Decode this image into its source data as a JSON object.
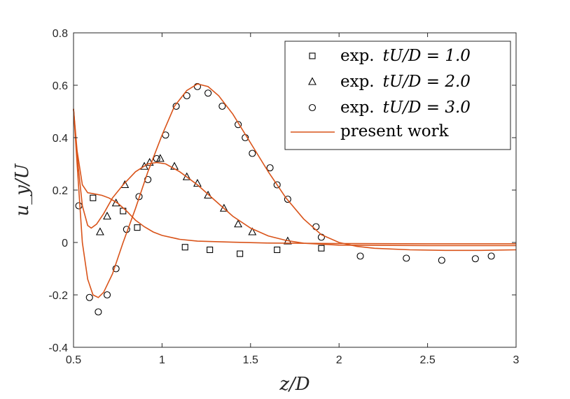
{
  "chart_data": {
    "type": "scatter",
    "xlabel": "z/D",
    "ylabel": "u_y/U",
    "xlim": [
      0.5,
      3
    ],
    "ylim": [
      -0.4,
      0.8
    ],
    "xticks": [
      "0.5",
      "1",
      "1.5",
      "2",
      "2.5",
      "3"
    ],
    "yticks": [
      "-0.4",
      "-0.2",
      "0",
      "0.2",
      "0.4",
      "0.6",
      "0.8"
    ],
    "grid": false,
    "legend_position": "top-right",
    "series": [
      {
        "name": "exp. tU/D = 1.0",
        "legend_prefix": "exp.",
        "legend_math": "tU/D = 1.0",
        "marker": "square",
        "points": [
          [
            0.61,
            0.17
          ],
          [
            0.78,
            0.12
          ],
          [
            0.86,
            0.057
          ],
          [
            1.13,
            -0.018
          ],
          [
            1.27,
            -0.028
          ],
          [
            1.44,
            -0.043
          ],
          [
            1.65,
            -0.028
          ],
          [
            1.9,
            -0.022
          ]
        ]
      },
      {
        "name": "exp. tU/D = 2.0",
        "legend_prefix": "exp.",
        "legend_math": "tU/D = 2.0",
        "marker": "triangle",
        "points": [
          [
            0.65,
            0.04
          ],
          [
            0.69,
            0.1
          ],
          [
            0.74,
            0.15
          ],
          [
            0.79,
            0.22
          ],
          [
            0.9,
            0.29
          ],
          [
            0.93,
            0.305
          ],
          [
            0.99,
            0.32
          ],
          [
            1.07,
            0.29
          ],
          [
            1.14,
            0.25
          ],
          [
            1.2,
            0.225
          ],
          [
            1.26,
            0.18
          ],
          [
            1.35,
            0.13
          ],
          [
            1.43,
            0.07
          ],
          [
            1.51,
            0.04
          ],
          [
            1.71,
            0.005
          ]
        ]
      },
      {
        "name": "exp. tU/D = 3.0",
        "legend_prefix": "exp.",
        "legend_math": "tU/D = 3.0",
        "marker": "circle",
        "points": [
          [
            0.53,
            0.14
          ],
          [
            0.59,
            -0.21
          ],
          [
            0.64,
            -0.265
          ],
          [
            0.69,
            -0.2
          ],
          [
            0.74,
            -0.1
          ],
          [
            0.8,
            0.05
          ],
          [
            0.87,
            0.175
          ],
          [
            0.92,
            0.24
          ],
          [
            0.97,
            0.32
          ],
          [
            1.02,
            0.41
          ],
          [
            1.08,
            0.52
          ],
          [
            1.14,
            0.56
          ],
          [
            1.2,
            0.595
          ],
          [
            1.26,
            0.57
          ],
          [
            1.34,
            0.52
          ],
          [
            1.43,
            0.45
          ],
          [
            1.47,
            0.4
          ],
          [
            1.51,
            0.34
          ],
          [
            1.61,
            0.285
          ],
          [
            1.65,
            0.22
          ],
          [
            1.71,
            0.165
          ],
          [
            1.87,
            0.06
          ],
          [
            1.9,
            0.02
          ],
          [
            2.12,
            -0.052
          ],
          [
            2.38,
            -0.06
          ],
          [
            2.58,
            -0.068
          ],
          [
            2.77,
            -0.062
          ],
          [
            2.86,
            -0.052
          ]
        ]
      },
      {
        "name": "present work",
        "legend_prefix": "present work",
        "legend_math": "",
        "marker": "line",
        "color": "#D95319",
        "curves": [
          [
            [
              0.5,
              0.51
            ],
            [
              0.52,
              0.35
            ],
            [
              0.55,
              0.22
            ],
            [
              0.58,
              0.19
            ],
            [
              0.62,
              0.185
            ],
            [
              0.66,
              0.18
            ],
            [
              0.7,
              0.17
            ],
            [
              0.75,
              0.15
            ],
            [
              0.8,
              0.12
            ],
            [
              0.85,
              0.085
            ],
            [
              0.9,
              0.06
            ],
            [
              0.95,
              0.04
            ],
            [
              1.0,
              0.027
            ],
            [
              1.1,
              0.012
            ],
            [
              1.2,
              0.005
            ],
            [
              1.4,
              0.001
            ],
            [
              1.6,
              -0.002
            ],
            [
              2.0,
              -0.004
            ],
            [
              2.5,
              -0.005
            ],
            [
              3.0,
              -0.005
            ]
          ],
          [
            [
              0.5,
              0.51
            ],
            [
              0.52,
              0.33
            ],
            [
              0.55,
              0.14
            ],
            [
              0.58,
              0.065
            ],
            [
              0.6,
              0.055
            ],
            [
              0.63,
              0.07
            ],
            [
              0.67,
              0.11
            ],
            [
              0.72,
              0.17
            ],
            [
              0.78,
              0.22
            ],
            [
              0.85,
              0.27
            ],
            [
              0.92,
              0.3
            ],
            [
              0.97,
              0.305
            ],
            [
              1.02,
              0.3
            ],
            [
              1.1,
              0.27
            ],
            [
              1.2,
              0.22
            ],
            [
              1.3,
              0.16
            ],
            [
              1.4,
              0.1
            ],
            [
              1.5,
              0.055
            ],
            [
              1.6,
              0.025
            ],
            [
              1.7,
              0.008
            ],
            [
              1.8,
              -0.003
            ],
            [
              2.0,
              -0.01
            ],
            [
              2.5,
              -0.012
            ],
            [
              3.0,
              -0.012
            ]
          ],
          [
            [
              0.5,
              0.51
            ],
            [
              0.52,
              0.3
            ],
            [
              0.55,
              0.0
            ],
            [
              0.58,
              -0.14
            ],
            [
              0.61,
              -0.2
            ],
            [
              0.64,
              -0.21
            ],
            [
              0.67,
              -0.19
            ],
            [
              0.72,
              -0.12
            ],
            [
              0.78,
              0.0
            ],
            [
              0.85,
              0.13
            ],
            [
              0.92,
              0.27
            ],
            [
              1.0,
              0.41
            ],
            [
              1.07,
              0.52
            ],
            [
              1.14,
              0.58
            ],
            [
              1.2,
              0.605
            ],
            [
              1.26,
              0.595
            ],
            [
              1.32,
              0.56
            ],
            [
              1.4,
              0.49
            ],
            [
              1.5,
              0.38
            ],
            [
              1.6,
              0.27
            ],
            [
              1.7,
              0.17
            ],
            [
              1.8,
              0.09
            ],
            [
              1.9,
              0.03
            ],
            [
              2.0,
              0.0
            ],
            [
              2.1,
              -0.015
            ],
            [
              2.2,
              -0.022
            ],
            [
              2.4,
              -0.028
            ],
            [
              2.6,
              -0.03
            ],
            [
              2.8,
              -0.03
            ],
            [
              3.0,
              -0.028
            ]
          ]
        ]
      }
    ]
  }
}
